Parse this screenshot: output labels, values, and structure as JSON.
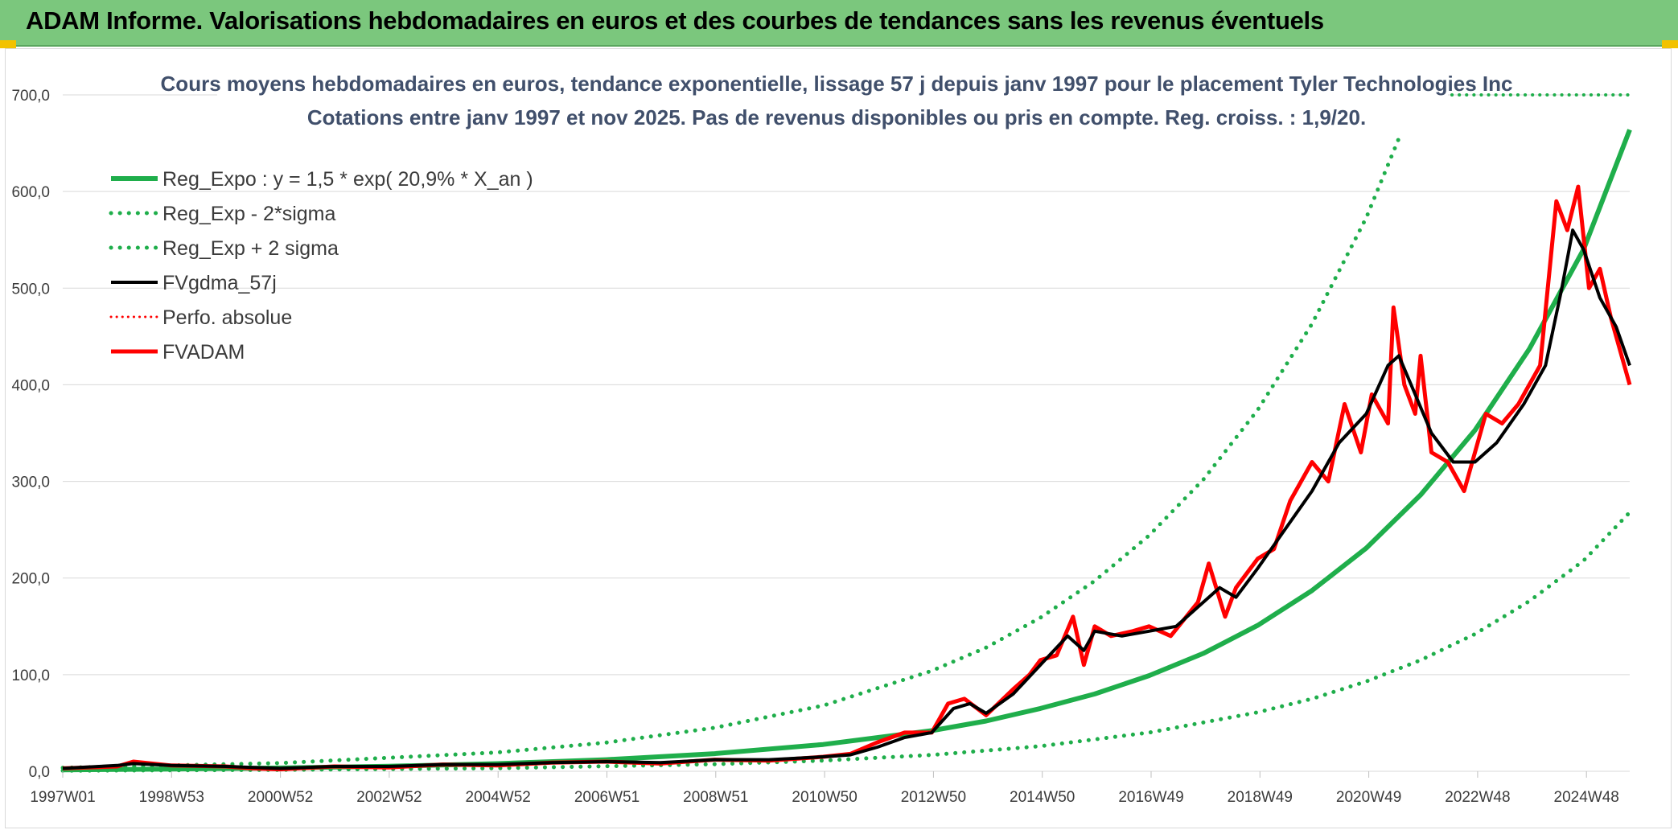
{
  "header": {
    "title": "ADAM Informe. Valorisations hebdomadaires en euros et des courbes de tendances sans les revenus éventuels"
  },
  "colors": {
    "banner": "#7bc77d",
    "trend": "#1fae4b",
    "price": "#ff0000",
    "smooth": "#000000",
    "grid": "#d9d9d9"
  },
  "chart_data": {
    "type": "line",
    "title": "Cours moyens hebdomadaires en euros, tendance exponentielle, lissage 57 j depuis janv 1997 pour le placement Tyler Technologies Inc",
    "subtitle": "Cotations entre janv 1997 et nov 2025. Pas de revenus disponibles ou pris en compte. Reg. croiss. : 1,9/20.",
    "xlabel": "",
    "ylabel": "",
    "ylim": [
      0,
      700
    ],
    "y_ticks": [
      "0,0",
      "100,0",
      "200,0",
      "300,0",
      "400,0",
      "500,0",
      "600,0",
      "700,0"
    ],
    "x_ticks": [
      "1997W01",
      "1998W53",
      "2000W52",
      "2002W52",
      "2004W52",
      "2006W51",
      "2008W51",
      "2010W50",
      "2012W50",
      "2014W50",
      "2016W49",
      "2018W49",
      "2020W49",
      "2022W48",
      "2024W48"
    ],
    "x_range": [
      1997.0,
      2025.85
    ],
    "grid": true,
    "legend_position": "top-left",
    "legend": [
      {
        "label": "Reg_Expo : y = 1,5 * exp( 20,9% *  X_an )",
        "style": "solid-green"
      },
      {
        "label": "Reg_Exp - 2*sigma",
        "style": "dotted-green"
      },
      {
        "label": "Reg_Exp + 2 sigma",
        "style": "dotted-green"
      },
      {
        "label": "FVgdma_57j",
        "style": "solid-black"
      },
      {
        "label": "Perfo. absolue",
        "style": "dotted-red"
      },
      {
        "label": "FVADAM",
        "style": "solid-red"
      }
    ],
    "series": [
      {
        "name": "Reg_Expo : y = 1,5 * exp( 20,9% *  X_an )",
        "x": [
          1997,
          1999,
          2001,
          2003,
          2005,
          2007,
          2009,
          2011,
          2013,
          2014,
          2015,
          2016,
          2017,
          2018,
          2019,
          2020,
          2021,
          2022,
          2023,
          2024,
          2025,
          2025.85
        ],
        "values": [
          1.5,
          2.3,
          3.4,
          5.2,
          7.9,
          12.0,
          18.2,
          27.7,
          42,
          52,
          65,
          80,
          99,
          122,
          151,
          187,
          231,
          286,
          353,
          437,
          540,
          664
        ]
      },
      {
        "name": "Reg_Exp - 2*sigma",
        "x": [
          1997,
          2001,
          2005,
          2009,
          2011,
          2013,
          2015,
          2017,
          2019,
          2020,
          2021,
          2022,
          2023,
          2024,
          2025,
          2025.85
        ],
        "values": [
          0.6,
          1.4,
          3.2,
          7.3,
          11.1,
          16.9,
          26,
          40,
          61,
          75,
          93,
          115,
          142,
          176,
          218,
          268
        ]
      },
      {
        "name": "Reg_Exp + 2 sigma",
        "x": [
          1997,
          2001,
          2005,
          2007,
          2009,
          2011,
          2013,
          2014,
          2015,
          2016,
          2017,
          2018,
          2019,
          2020,
          2021,
          2021.6
        ],
        "values": [
          3.7,
          8.5,
          19.5,
          29.6,
          45,
          68,
          104,
          128,
          159,
          197,
          244,
          302,
          374,
          463,
          573,
          655
        ]
      },
      {
        "name": "FVgdma_57j",
        "x": [
          1997,
          1998,
          1998.3,
          1999,
          2000,
          2000.5,
          2001,
          2002,
          2003,
          2004,
          2005,
          2006,
          2007,
          2008,
          2009,
          2010,
          2011,
          2011.5,
          2012,
          2012.5,
          2013,
          2013.4,
          2013.7,
          2014,
          2014.5,
          2015,
          2015.5,
          2015.8,
          2016,
          2016.5,
          2017,
          2017.5,
          2017.9,
          2018.3,
          2018.6,
          2019,
          2019.5,
          2020,
          2020.5,
          2021,
          2021.4,
          2021.6,
          2021.9,
          2022.2,
          2022.6,
          2023,
          2023.4,
          2023.9,
          2024.3,
          2024.6,
          2024.8,
          2025,
          2025.3,
          2025.6,
          2025.85
        ],
        "values": [
          3,
          6,
          8,
          6,
          5,
          4,
          3,
          5,
          5,
          7,
          7,
          9,
          10,
          9,
          12,
          12,
          15,
          17,
          25,
          35,
          40,
          65,
          70,
          60,
          80,
          110,
          140,
          125,
          145,
          140,
          145,
          150,
          170,
          190,
          180,
          210,
          250,
          290,
          340,
          370,
          420,
          430,
          390,
          350,
          320,
          320,
          340,
          380,
          420,
          500,
          560,
          540,
          490,
          460,
          420
        ]
      },
      {
        "name": "FVADAM",
        "x": [
          1997,
          1998,
          1998.3,
          1999,
          2000,
          2000.5,
          2001,
          2002,
          2003,
          2004,
          2005,
          2006,
          2007,
          2008,
          2009,
          2010,
          2011,
          2011.5,
          2012,
          2012.5,
          2013,
          2013.3,
          2013.6,
          2014,
          2014.5,
          2014.8,
          2015,
          2015.3,
          2015.6,
          2015.8,
          2016,
          2016.3,
          2016.7,
          2017,
          2017.4,
          2017.9,
          2018.1,
          2018.4,
          2018.6,
          2019,
          2019.3,
          2019.6,
          2020,
          2020.3,
          2020.6,
          2020.9,
          2021.1,
          2021.4,
          2021.5,
          2021.7,
          2021.9,
          2022,
          2022.2,
          2022.5,
          2022.8,
          2023,
          2023.2,
          2023.5,
          2023.8,
          2024,
          2024.2,
          2024.5,
          2024.7,
          2024.9,
          2025.1,
          2025.3,
          2025.5,
          2025.7,
          2025.85
        ],
        "values": [
          3,
          5,
          10,
          6,
          5,
          3,
          2,
          5,
          4,
          7,
          6,
          9,
          10,
          8,
          12,
          11,
          15,
          18,
          30,
          40,
          40,
          70,
          75,
          58,
          85,
          100,
          115,
          120,
          160,
          110,
          150,
          140,
          145,
          150,
          140,
          175,
          215,
          160,
          190,
          220,
          230,
          280,
          320,
          300,
          380,
          330,
          390,
          360,
          480,
          400,
          370,
          430,
          330,
          320,
          290,
          330,
          370,
          360,
          380,
          400,
          420,
          590,
          560,
          605,
          500,
          520,
          470,
          430,
          400
        ]
      }
    ]
  }
}
